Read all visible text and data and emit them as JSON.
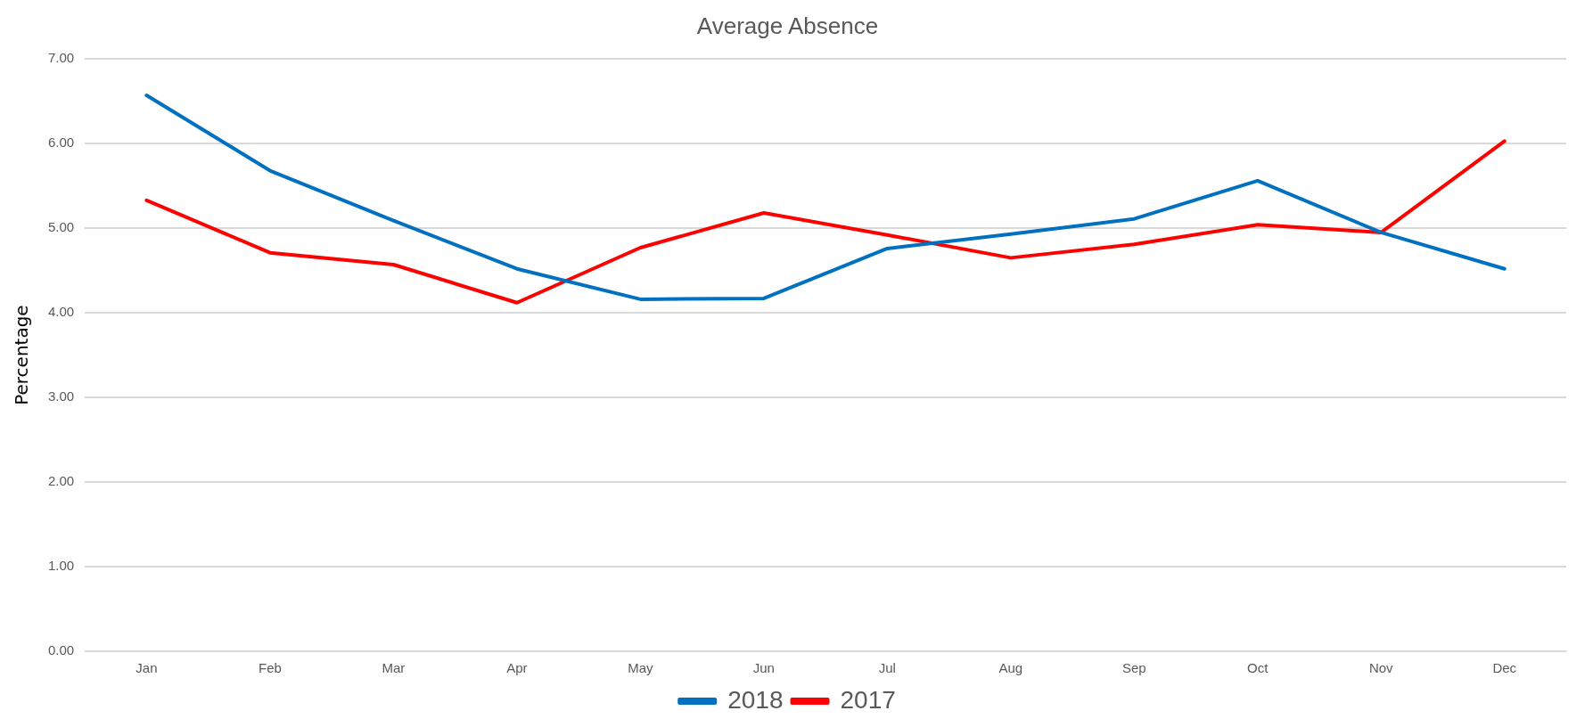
{
  "chart_data": {
    "type": "line",
    "title": "Average Absence",
    "ylabel": "Percentage",
    "categories": [
      "Jan",
      "Feb",
      "Mar",
      "Apr",
      "May",
      "Jun",
      "Jul",
      "Aug",
      "Sep",
      "Oct",
      "Nov",
      "Dec"
    ],
    "series": [
      {
        "name": "2018",
        "color": "#0070c0",
        "values": [
          6.57,
          5.68,
          5.09,
          4.52,
          4.16,
          4.17,
          4.76,
          4.93,
          5.11,
          5.56,
          4.95,
          4.52
        ]
      },
      {
        "name": "2017",
        "color": "#ff0000",
        "values": [
          5.33,
          4.71,
          4.57,
          4.12,
          4.77,
          5.18,
          4.92,
          4.65,
          4.81,
          5.04,
          4.95,
          6.03
        ]
      }
    ],
    "ylim": [
      0,
      7
    ],
    "yticks": [
      {
        "value": 0,
        "label": "0.00"
      },
      {
        "value": 1,
        "label": "1.00"
      },
      {
        "value": 2,
        "label": "2.00"
      },
      {
        "value": 3,
        "label": "3.00"
      },
      {
        "value": 4,
        "label": "4.00"
      },
      {
        "value": 5,
        "label": "5.00"
      },
      {
        "value": 6,
        "label": "6.00"
      },
      {
        "value": 7,
        "label": "7.00"
      }
    ],
    "grid": "y",
    "legend": "bottom",
    "marker": "none",
    "line_style": "solid"
  }
}
